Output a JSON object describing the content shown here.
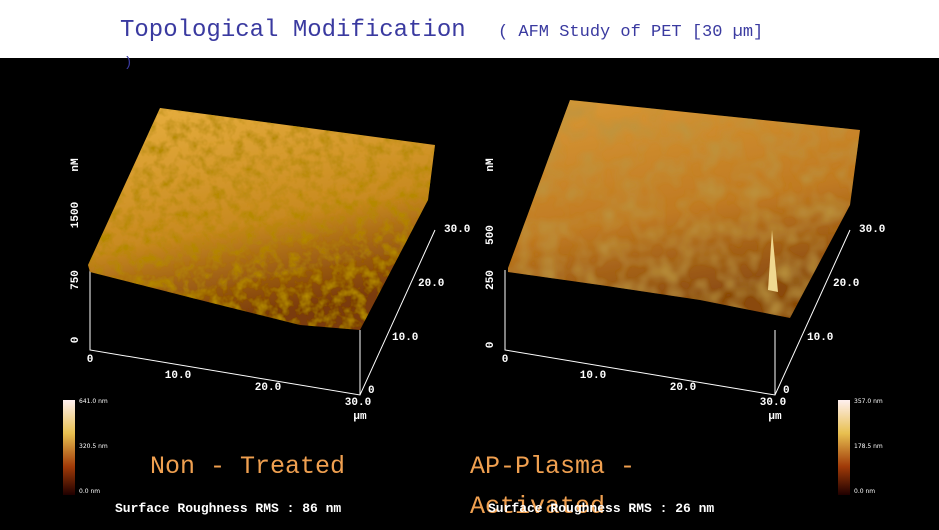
{
  "header": {
    "title": "Topological Modification",
    "subtitle": "( AFM Study of PET [30 µm]",
    "subtitle_end": ")"
  },
  "panels": [
    {
      "z_unit": "nM",
      "z_ticks": [
        "1500",
        "750",
        "0"
      ],
      "x_ticks": [
        "0",
        "10.0",
        "20.0",
        "30.0"
      ],
      "y_ticks": [
        "0",
        "10.0",
        "20.0",
        "30.0"
      ],
      "xy_unit": "µm",
      "colorbar": [
        "641.0 nm",
        "320.5 nm",
        "0.0 nm"
      ],
      "label_lines": [
        "Non - Treated"
      ],
      "roughness": "Surface Roughness RMS : 86 nm"
    },
    {
      "z_unit": "nM",
      "z_ticks": [
        "500",
        "250",
        "0"
      ],
      "x_ticks": [
        "0",
        "10.0",
        "20.0",
        "30.0"
      ],
      "y_ticks": [
        "0",
        "10.0",
        "20.0",
        "30.0"
      ],
      "xy_unit": "µm",
      "colorbar": [
        "357.0 nm",
        "178.5 nm",
        "0.0 nm"
      ],
      "label_lines": [
        "AP-Plasma -",
        "Activated"
      ],
      "roughness": "Surface Roughness RMS : 26 nm"
    }
  ]
}
